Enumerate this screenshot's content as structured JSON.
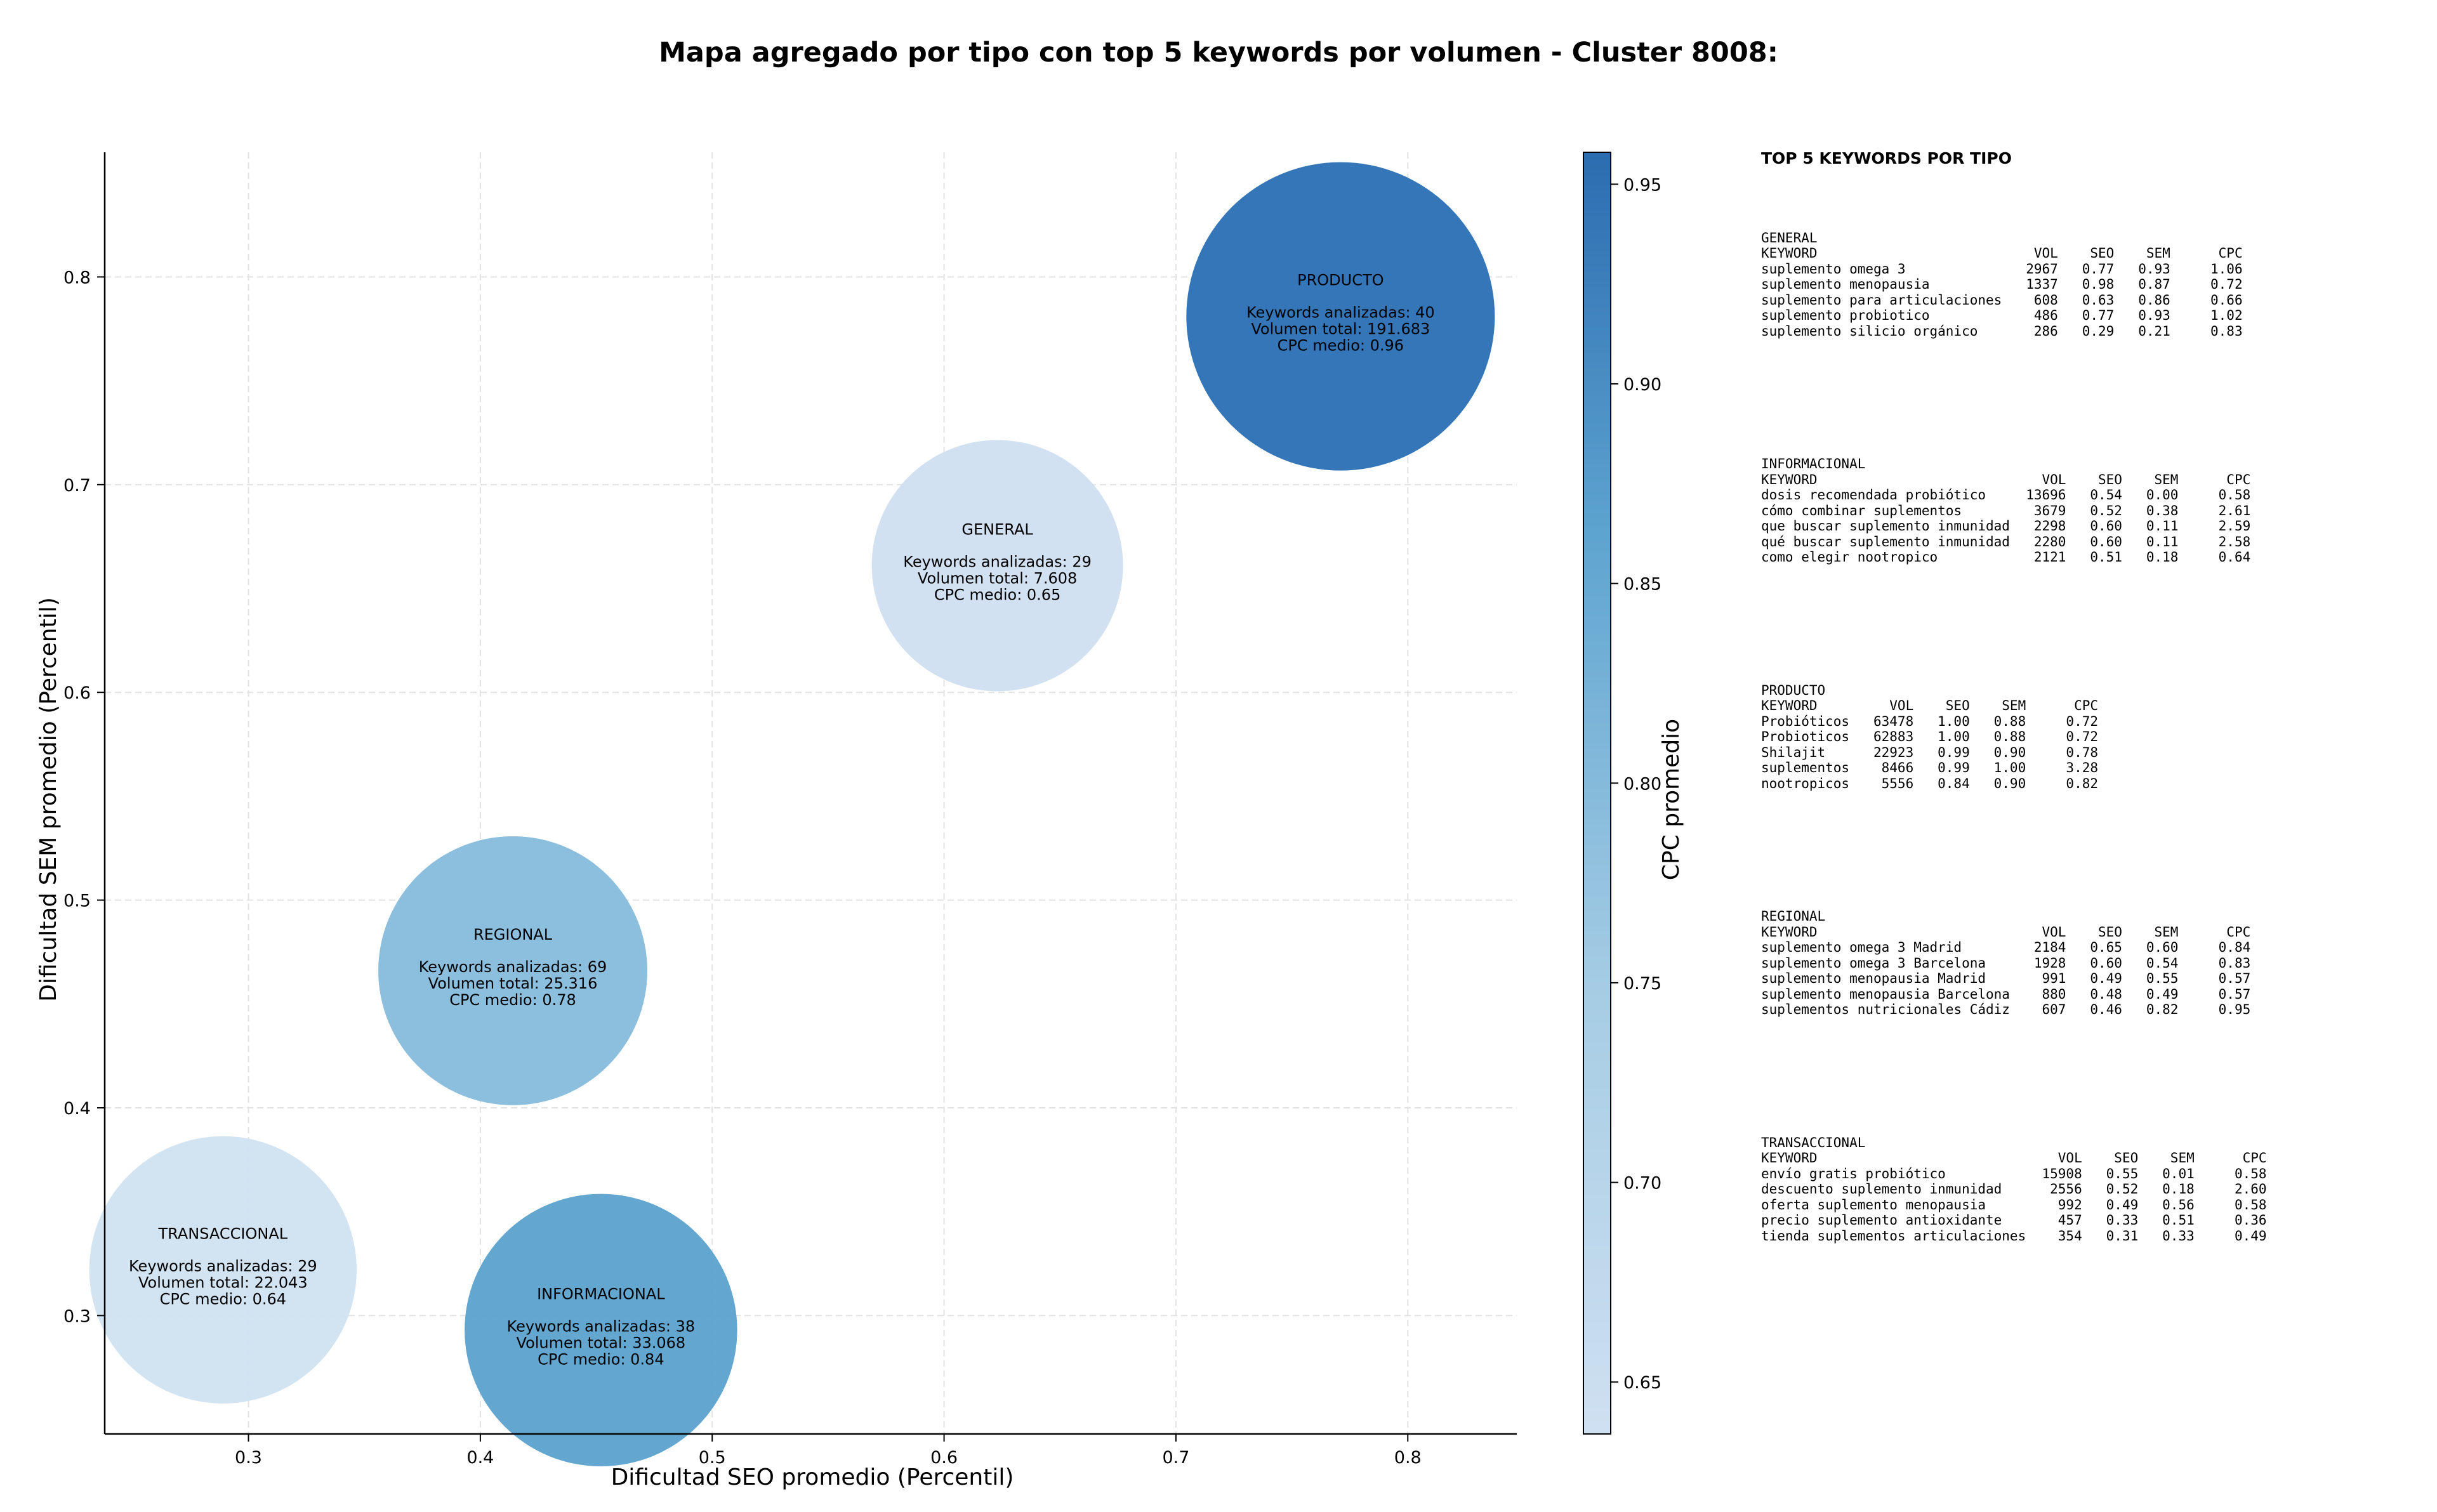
{
  "chart_data": {
    "type": "scatter",
    "title": "Mapa agregado por tipo con top 5 keywords por volumen - Cluster 8008:",
    "xlabel": "Dificultad SEO promedio (Percentil)",
    "ylabel": "Dificultad SEM promedio (Percentil)",
    "xlim": [
      0.238,
      0.847
    ],
    "ylim": [
      0.243,
      0.86
    ],
    "xticks": [
      0.3,
      0.4,
      0.5,
      0.6,
      0.7,
      0.8
    ],
    "yticks": [
      0.3,
      0.4,
      0.5,
      0.6,
      0.7,
      0.8
    ],
    "grid": true,
    "colorbar": {
      "label": "CPC promedio",
      "range": [
        0.637,
        0.958
      ],
      "ticks": [
        0.65,
        0.7,
        0.75,
        0.8,
        0.85,
        0.9,
        0.95
      ],
      "colormap": "Blues",
      "colors": [
        "#c8dcf0",
        "#2b6cb0"
      ]
    },
    "points": [
      {
        "tipo": "PRODUCTO",
        "x": 0.771,
        "y": 0.781,
        "volumen_num": 191683,
        "cpc": 0.96,
        "keywords_line": "Keywords analizadas: 40",
        "volumen_line": "Volumen total: 191.683",
        "cpc_line": "CPC medio: 0.96",
        "color": "#2d72b5"
      },
      {
        "tipo": "GENERAL",
        "x": 0.623,
        "y": 0.661,
        "volumen_num": 7608,
        "cpc": 0.65,
        "keywords_line": "Keywords analizadas: 29",
        "volumen_line": "Volumen total: 7.608",
        "cpc_line": "CPC medio: 0.65",
        "color": "#cfe0f1"
      },
      {
        "tipo": "REGIONAL",
        "x": 0.414,
        "y": 0.466,
        "volumen_num": 25316,
        "cpc": 0.78,
        "keywords_line": "Keywords analizadas: 69",
        "volumen_line": "Volumen total: 25.316",
        "cpc_line": "CPC medio: 0.78",
        "color": "#88bcdd"
      },
      {
        "tipo": "TRANSACCIONAL",
        "x": 0.289,
        "y": 0.322,
        "volumen_num": 22043,
        "cpc": 0.64,
        "keywords_line": "Keywords analizadas: 29",
        "volumen_line": "Volumen total: 22.043",
        "cpc_line": "CPC medio: 0.64",
        "color": "#d1e2f2"
      },
      {
        "tipo": "INFORMACIONAL",
        "x": 0.452,
        "y": 0.293,
        "volumen_num": 33068,
        "cpc": 0.84,
        "keywords_line": "Keywords analizadas: 38",
        "volumen_line": "Volumen total: 33.068",
        "cpc_line": "CPC medio: 0.84",
        "color": "#5ea4d0"
      }
    ]
  },
  "side_panel": {
    "title": "TOP 5 KEYWORDS POR TIPO",
    "blocks": [
      {
        "name": "GENERAL",
        "text": "GENERAL\nKEYWORD                           VOL    SEO    SEM      CPC\nsuplemento omega 3               2967   0.77   0.93     1.06\nsuplemento menopausia            1337   0.98   0.87     0.72\nsuplemento para articulaciones    608   0.63   0.86     0.66\nsuplemento probiotico             486   0.77   0.93     1.02\nsuplemento silicio orgánico       286   0.29   0.21     0.83"
      },
      {
        "name": "INFORMACIONAL",
        "text": "INFORMACIONAL\nKEYWORD                            VOL    SEO    SEM      CPC\ndosis recomendada probiótico     13696   0.54   0.00     0.58\ncómo combinar suplementos         3679   0.52   0.38     2.61\nque buscar suplemento inmunidad   2298   0.60   0.11     2.59\nqué buscar suplemento inmunidad   2280   0.60   0.11     2.58\ncomo elegir nootropico            2121   0.51   0.18     0.64"
      },
      {
        "name": "PRODUCTO",
        "text": "PRODUCTO\nKEYWORD         VOL    SEO    SEM      CPC\nProbióticos   63478   1.00   0.88     0.72\nProbioticos   62883   1.00   0.88     0.72\nShilajit      22923   0.99   0.90     0.78\nsuplementos    8466   0.99   1.00     3.28\nnootropicos    5556   0.84   0.90     0.82"
      },
      {
        "name": "REGIONAL",
        "text": "REGIONAL\nKEYWORD                            VOL    SEO    SEM      CPC\nsuplemento omega 3 Madrid         2184   0.65   0.60     0.84\nsuplemento omega 3 Barcelona      1928   0.60   0.54     0.83\nsuplemento menopausia Madrid       991   0.49   0.55     0.57\nsuplemento menopausia Barcelona    880   0.48   0.49     0.57\nsuplementos nutricionales Cádiz    607   0.46   0.82     0.95"
      },
      {
        "name": "TRANSACCIONAL",
        "text": "TRANSACCIONAL\nKEYWORD                              VOL    SEO    SEM      CPC\nenvío gratis probiótico            15908   0.55   0.01     0.58\ndescuento suplemento inmunidad      2556   0.52   0.18     2.60\noferta suplemento menopausia         992   0.49   0.56     0.58\nprecio suplemento antioxidante       457   0.33   0.51     0.36\ntienda suplementos articulaciones    354   0.31   0.33     0.49"
      }
    ]
  }
}
